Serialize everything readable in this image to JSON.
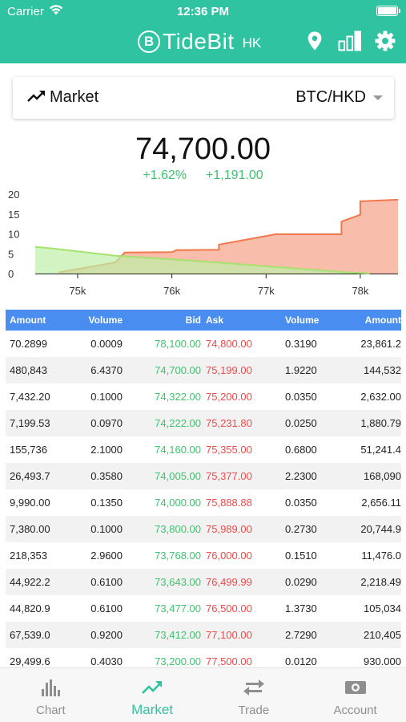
{
  "status_bar": {
    "carrier": "Carrier",
    "time": "12:36 PM"
  },
  "brand": {
    "mark": "B",
    "name": "TideBit",
    "region": "HK"
  },
  "header_icons": [
    "location-pin-icon",
    "bar-chart-icon",
    "gear-icon"
  ],
  "market": {
    "label": "Market",
    "pair": "BTC/HKD"
  },
  "ticker": {
    "price": "74,700.00",
    "change_pct": "+1.62%",
    "change_abs": "+1,191.00"
  },
  "colors": {
    "accent": "#2fc3a2",
    "table_header": "#4a8df0",
    "bid": "#3ec46d",
    "ask": "#ef4a4a",
    "ask_fill": "#f7b6a2",
    "bid_fill": "#bdf0a8"
  },
  "chart_data": {
    "type": "area",
    "title": "",
    "xlabel": "",
    "ylabel": "",
    "x_ticks": [
      "75k",
      "76k",
      "77k",
      "78k"
    ],
    "y_ticks": [
      "0",
      "5",
      "10",
      "15",
      "20"
    ],
    "xlim": [
      74550,
      78400
    ],
    "ylim": [
      0,
      20
    ],
    "grid": false,
    "series": [
      {
        "side": "bid",
        "points": [
          [
            74550,
            6.7
          ],
          [
            74700,
            6.4
          ],
          [
            75400,
            4.5
          ],
          [
            76200,
            3.3
          ],
          [
            77200,
            1.5
          ],
          [
            77800,
            0.4
          ],
          [
            78100,
            0.0
          ]
        ]
      },
      {
        "side": "ask",
        "points": [
          [
            74800,
            0.3
          ],
          [
            75400,
            2.8
          ],
          [
            75500,
            5.3
          ],
          [
            76000,
            5.4
          ],
          [
            76050,
            5.9
          ],
          [
            76500,
            6.0
          ],
          [
            76500,
            7.3
          ],
          [
            77100,
            9.9
          ],
          [
            77800,
            9.9
          ],
          [
            77800,
            13.1
          ],
          [
            78000,
            14.8
          ],
          [
            78000,
            18.2
          ],
          [
            78400,
            18.6
          ]
        ]
      }
    ]
  },
  "order_book": {
    "headers": [
      "Amount",
      "Volume",
      "Bid",
      "Ask",
      "Volume",
      "Amount"
    ],
    "rows": [
      [
        "70.2899",
        "0.0009",
        "78,100.00",
        "74,800.00",
        "0.3190",
        "23,861.2"
      ],
      [
        "480,843",
        "6.4370",
        "74,700.00",
        "75,199.00",
        "1.9220",
        "144,532"
      ],
      [
        "7,432.20",
        "0.1000",
        "74,322.00",
        "75,200.00",
        "0.0350",
        "2,632.00"
      ],
      [
        "7,199.53",
        "0.0970",
        "74,222.00",
        "75,231.80",
        "0.0250",
        "1,880.79"
      ],
      [
        "155,736",
        "2.1000",
        "74,160.00",
        "75,355.00",
        "0.6800",
        "51,241.4"
      ],
      [
        "26,493.7",
        "0.3580",
        "74,005.00",
        "75,377.00",
        "2.2300",
        "168,090"
      ],
      [
        "9,990.00",
        "0.1350",
        "74,000.00",
        "75,888.88",
        "0.0350",
        "2,656.11"
      ],
      [
        "7,380.00",
        "0.1000",
        "73,800.00",
        "75,989.00",
        "0.2730",
        "20,744.9"
      ],
      [
        "218,353",
        "2.9600",
        "73,768.00",
        "76,000.00",
        "0.1510",
        "11,476.0"
      ],
      [
        "44,922.2",
        "0.6100",
        "73,643.00",
        "76,499.99",
        "0.0290",
        "2,218.49"
      ],
      [
        "44,820.9",
        "0.6100",
        "73,477.00",
        "76,500.00",
        "1.3730",
        "105,034"
      ],
      [
        "67,539.0",
        "0.9200",
        "73,412.00",
        "77,100.00",
        "2.7290",
        "210,405"
      ],
      [
        "29,499.6",
        "0.4030",
        "73,200.00",
        "77,500.00",
        "0.0120",
        "930.000"
      ]
    ]
  },
  "tabs": [
    {
      "label": "Chart",
      "icon": "bar-chart-icon",
      "active": false
    },
    {
      "label": "Market",
      "icon": "trend-up-icon",
      "active": true
    },
    {
      "label": "Trade",
      "icon": "swap-arrows-icon",
      "active": false
    },
    {
      "label": "Account",
      "icon": "banknote-icon",
      "active": false
    }
  ]
}
